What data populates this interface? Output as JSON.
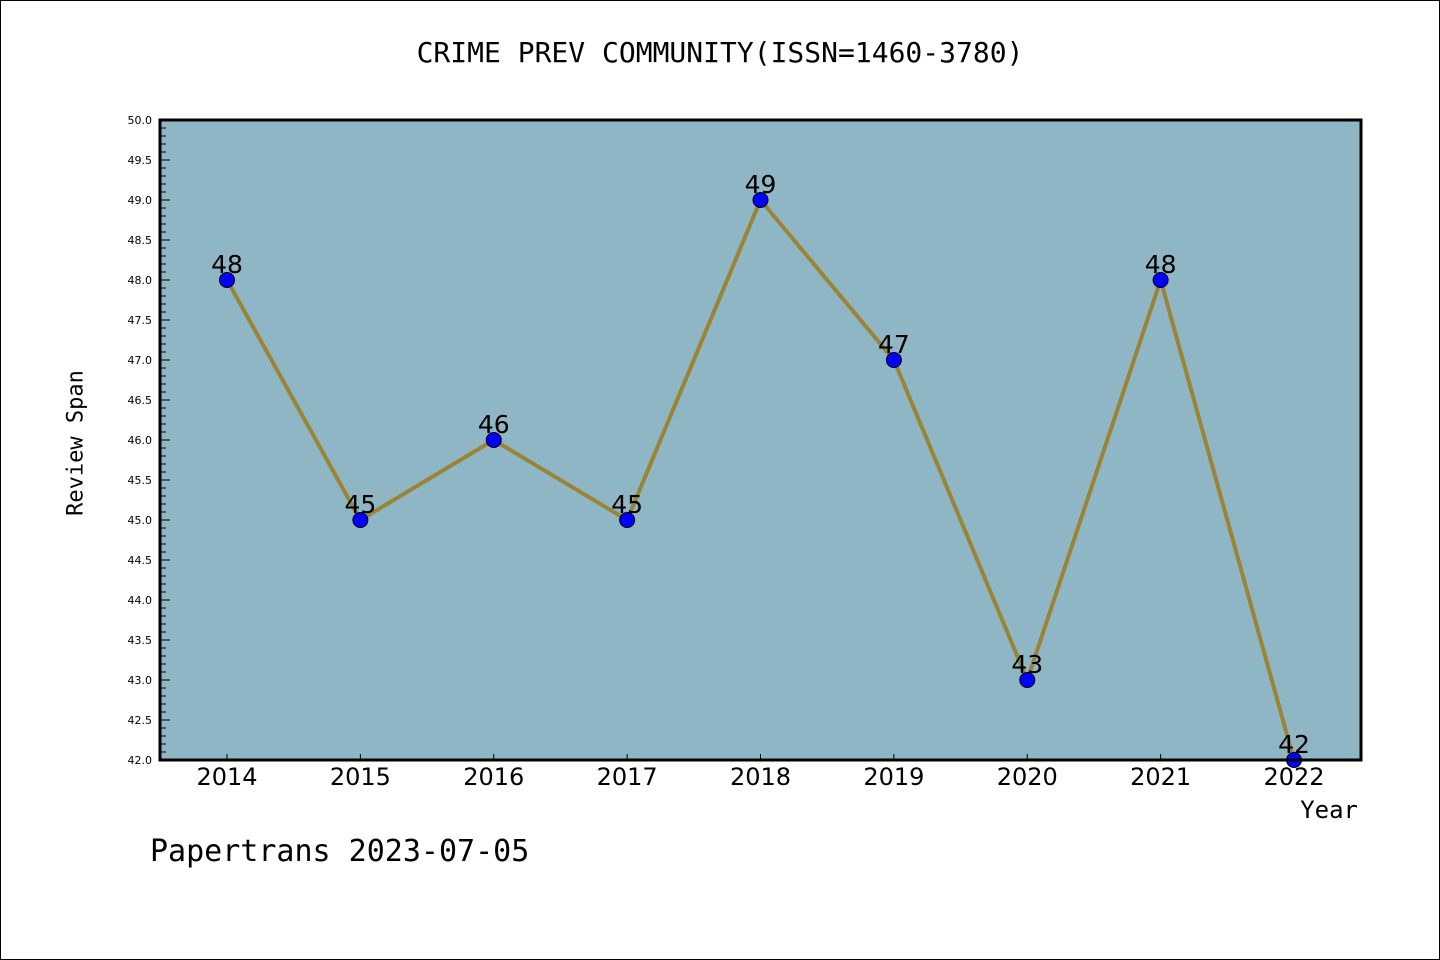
{
  "chart_data": {
    "type": "line",
    "title": "CRIME PREV COMMUNITY(ISSN=1460-3780)",
    "xlabel": "Year",
    "ylabel": "Review Span",
    "categories": [
      "2014",
      "2015",
      "2016",
      "2017",
      "2018",
      "2019",
      "2020",
      "2021",
      "2022"
    ],
    "values": [
      48,
      45,
      46,
      45,
      49,
      47,
      43,
      48,
      42
    ],
    "ylim": [
      42.0,
      50.0
    ],
    "yticks": [
      "42.0",
      "42.5",
      "43.0",
      "43.5",
      "44.0",
      "44.5",
      "45.0",
      "45.5",
      "46.0",
      "46.5",
      "47.0",
      "47.5",
      "48.0",
      "48.5",
      "49.0",
      "49.5",
      "50.0"
    ],
    "grid": false,
    "colors": {
      "background": "#8fb6c4",
      "line": "#9a8436",
      "marker": "#0000ff"
    }
  },
  "footer": "Papertrans 2023-07-05"
}
